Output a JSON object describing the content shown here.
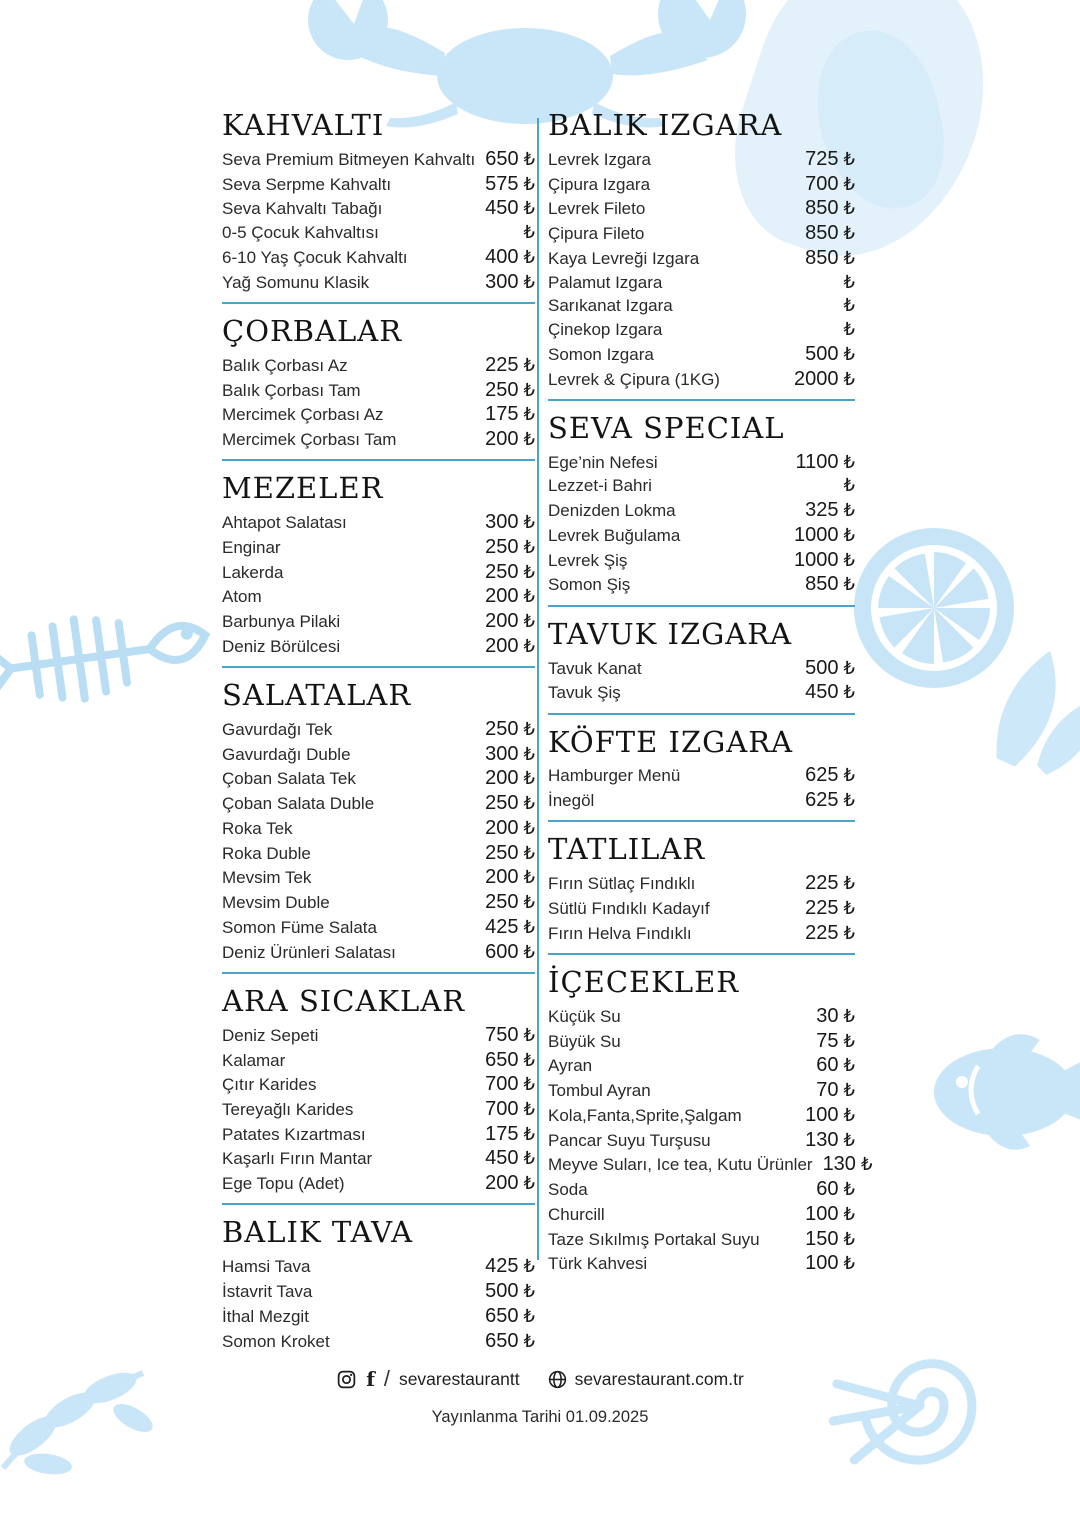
{
  "menu": {
    "currency_symbol": "₺",
    "colors": {
      "accent_line": "#4aa3c8",
      "decor_blue": "#c9e6f8",
      "text": "#1f1f1f"
    },
    "columns": {
      "left": [
        {
          "title": "KAHVALTI",
          "divider_after": true,
          "items": [
            {
              "name": "Seva Premium Bitmeyen Kahvaltı",
              "price": "650"
            },
            {
              "name": "Seva Serpme Kahvaltı",
              "price": "575"
            },
            {
              "name": "Seva Kahvaltı Tabağı",
              "price": "450"
            },
            {
              "name": "0-5 Çocuk Kahvaltısı",
              "price": ""
            },
            {
              "name": "6-10 Yaş Çocuk Kahvaltı",
              "price": "400"
            },
            {
              "name": "Yağ Somunu Klasik",
              "price": "300"
            }
          ]
        },
        {
          "title": "ÇORBALAR",
          "divider_after": true,
          "items": [
            {
              "name": "Balık Çorbası Az",
              "price": "225"
            },
            {
              "name": "Balık Çorbası Tam",
              "price": "250"
            },
            {
              "name": "Mercimek Çorbası Az",
              "price": "175"
            },
            {
              "name": "Mercimek Çorbası Tam",
              "price": "200"
            }
          ]
        },
        {
          "title": "MEZELER",
          "divider_after": true,
          "items": [
            {
              "name": "Ahtapot Salatası",
              "price": "300"
            },
            {
              "name": "Enginar",
              "price": "250"
            },
            {
              "name": "Lakerda",
              "price": "250"
            },
            {
              "name": "Atom",
              "price": "200"
            },
            {
              "name": "Barbunya Pilaki",
              "price": "200"
            },
            {
              "name": "Deniz Börülcesi",
              "price": "200"
            }
          ]
        },
        {
          "title": "SALATALAR",
          "divider_after": true,
          "items": [
            {
              "name": "Gavurdağı Tek",
              "price": "250"
            },
            {
              "name": "Gavurdağı Duble",
              "price": "300"
            },
            {
              "name": "Çoban Salata Tek",
              "price": "200"
            },
            {
              "name": "Çoban Salata Duble",
              "price": "250"
            },
            {
              "name": "Roka Tek",
              "price": "200"
            },
            {
              "name": "Roka Duble",
              "price": "250"
            },
            {
              "name": "Mevsim Tek",
              "price": "200"
            },
            {
              "name": "Mevsim Duble",
              "price": "250"
            },
            {
              "name": "Somon Füme Salata",
              "price": "425"
            },
            {
              "name": "Deniz Ürünleri Salatası",
              "price": "600"
            }
          ]
        },
        {
          "title": "ARA SICAKLAR",
          "divider_after": true,
          "items": [
            {
              "name": "Deniz Sepeti",
              "price": "750"
            },
            {
              "name": "Kalamar",
              "price": "650"
            },
            {
              "name": "Çıtır Karides",
              "price": "700"
            },
            {
              "name": "Tereyağlı Karides",
              "price": "700"
            },
            {
              "name": "Patates Kızartması",
              "price": "175"
            },
            {
              "name": "Kaşarlı Fırın Mantar",
              "price": "450"
            },
            {
              "name": "Ege Topu (Adet)",
              "price": "200"
            }
          ]
        },
        {
          "title": "BALIK TAVA",
          "divider_after": false,
          "items": [
            {
              "name": "Hamsi Tava",
              "price": "425"
            },
            {
              "name": "İstavrit Tava",
              "price": "500"
            },
            {
              "name": "İthal Mezgit",
              "price": "650"
            },
            {
              "name": "Somon Kroket",
              "price": "650"
            }
          ]
        }
      ],
      "right": [
        {
          "title": "BALIK IZGARA",
          "divider_after": true,
          "items": [
            {
              "name": "Levrek Izgara",
              "price": "725"
            },
            {
              "name": "Çipura Izgara",
              "price": "700"
            },
            {
              "name": "Levrek Fileto",
              "price": "850"
            },
            {
              "name": "Çipura Fileto",
              "price": "850"
            },
            {
              "name": "Kaya Levreği Izgara",
              "price": "850"
            },
            {
              "name": "Palamut Izgara",
              "price": ""
            },
            {
              "name": "Sarıkanat Izgara",
              "price": ""
            },
            {
              "name": "Çinekop Izgara",
              "price": ""
            },
            {
              "name": "Somon Izgara",
              "price": "500"
            },
            {
              "name": "Levrek & Çipura (1KG)",
              "price": "2000"
            }
          ]
        },
        {
          "title": "SEVA SPECIAL",
          "divider_after": true,
          "items": [
            {
              "name": "Ege’nin Nefesi",
              "price": "1100"
            },
            {
              "name": "Lezzet-i Bahri",
              "price": ""
            },
            {
              "name": "Denizden Lokma",
              "price": "325"
            },
            {
              "name": "Levrek Buğulama",
              "price": "1000"
            },
            {
              "name": "Levrek Şiş",
              "price": "1000"
            },
            {
              "name": "Somon Şiş",
              "price": "850"
            }
          ]
        },
        {
          "title": "TAVUK IZGARA",
          "divider_after": true,
          "items": [
            {
              "name": "Tavuk Kanat",
              "price": "500"
            },
            {
              "name": "Tavuk Şiş",
              "price": "450"
            }
          ]
        },
        {
          "title": "KÖFTE IZGARA",
          "divider_after": true,
          "items": [
            {
              "name": "Hamburger Menü",
              "price": "625"
            },
            {
              "name": "İnegöl",
              "price": "625"
            }
          ]
        },
        {
          "title": "TATLILAR",
          "divider_after": true,
          "items": [
            {
              "name": "Fırın Sütlaç Fındıklı",
              "price": "225"
            },
            {
              "name": "Sütlü Fındıklı Kadayıf",
              "price": "225"
            },
            {
              "name": "Fırın Helva Fındıklı",
              "price": "225"
            }
          ]
        },
        {
          "title": "İÇECEKLER",
          "divider_after": false,
          "items": [
            {
              "name": "Küçük Su",
              "price": "30"
            },
            {
              "name": "Büyük Su",
              "price": "75"
            },
            {
              "name": "Ayran",
              "price": "60"
            },
            {
              "name": "Tombul Ayran",
              "price": "70"
            },
            {
              "name": "Kola,Fanta,Sprite,Şalgam",
              "price": "100"
            },
            {
              "name": "Pancar Suyu Turşusu",
              "price": "130"
            },
            {
              "name": "Meyve Suları, Ice tea, Kutu Ürünler",
              "price": "130"
            },
            {
              "name": "Soda",
              "price": "60"
            },
            {
              "name": "Churcill",
              "price": "100"
            },
            {
              "name": "Taze Sıkılmış Portakal Suyu",
              "price": "150"
            },
            {
              "name": "Türk Kahvesi",
              "price": "100"
            }
          ]
        }
      ]
    },
    "footer": {
      "social_separator": "/",
      "social_handle": "sevarestaurantt",
      "website": "sevarestaurant.com.tr",
      "publish_date": "Yayınlanma Tarihi 01.09.2025"
    }
  }
}
